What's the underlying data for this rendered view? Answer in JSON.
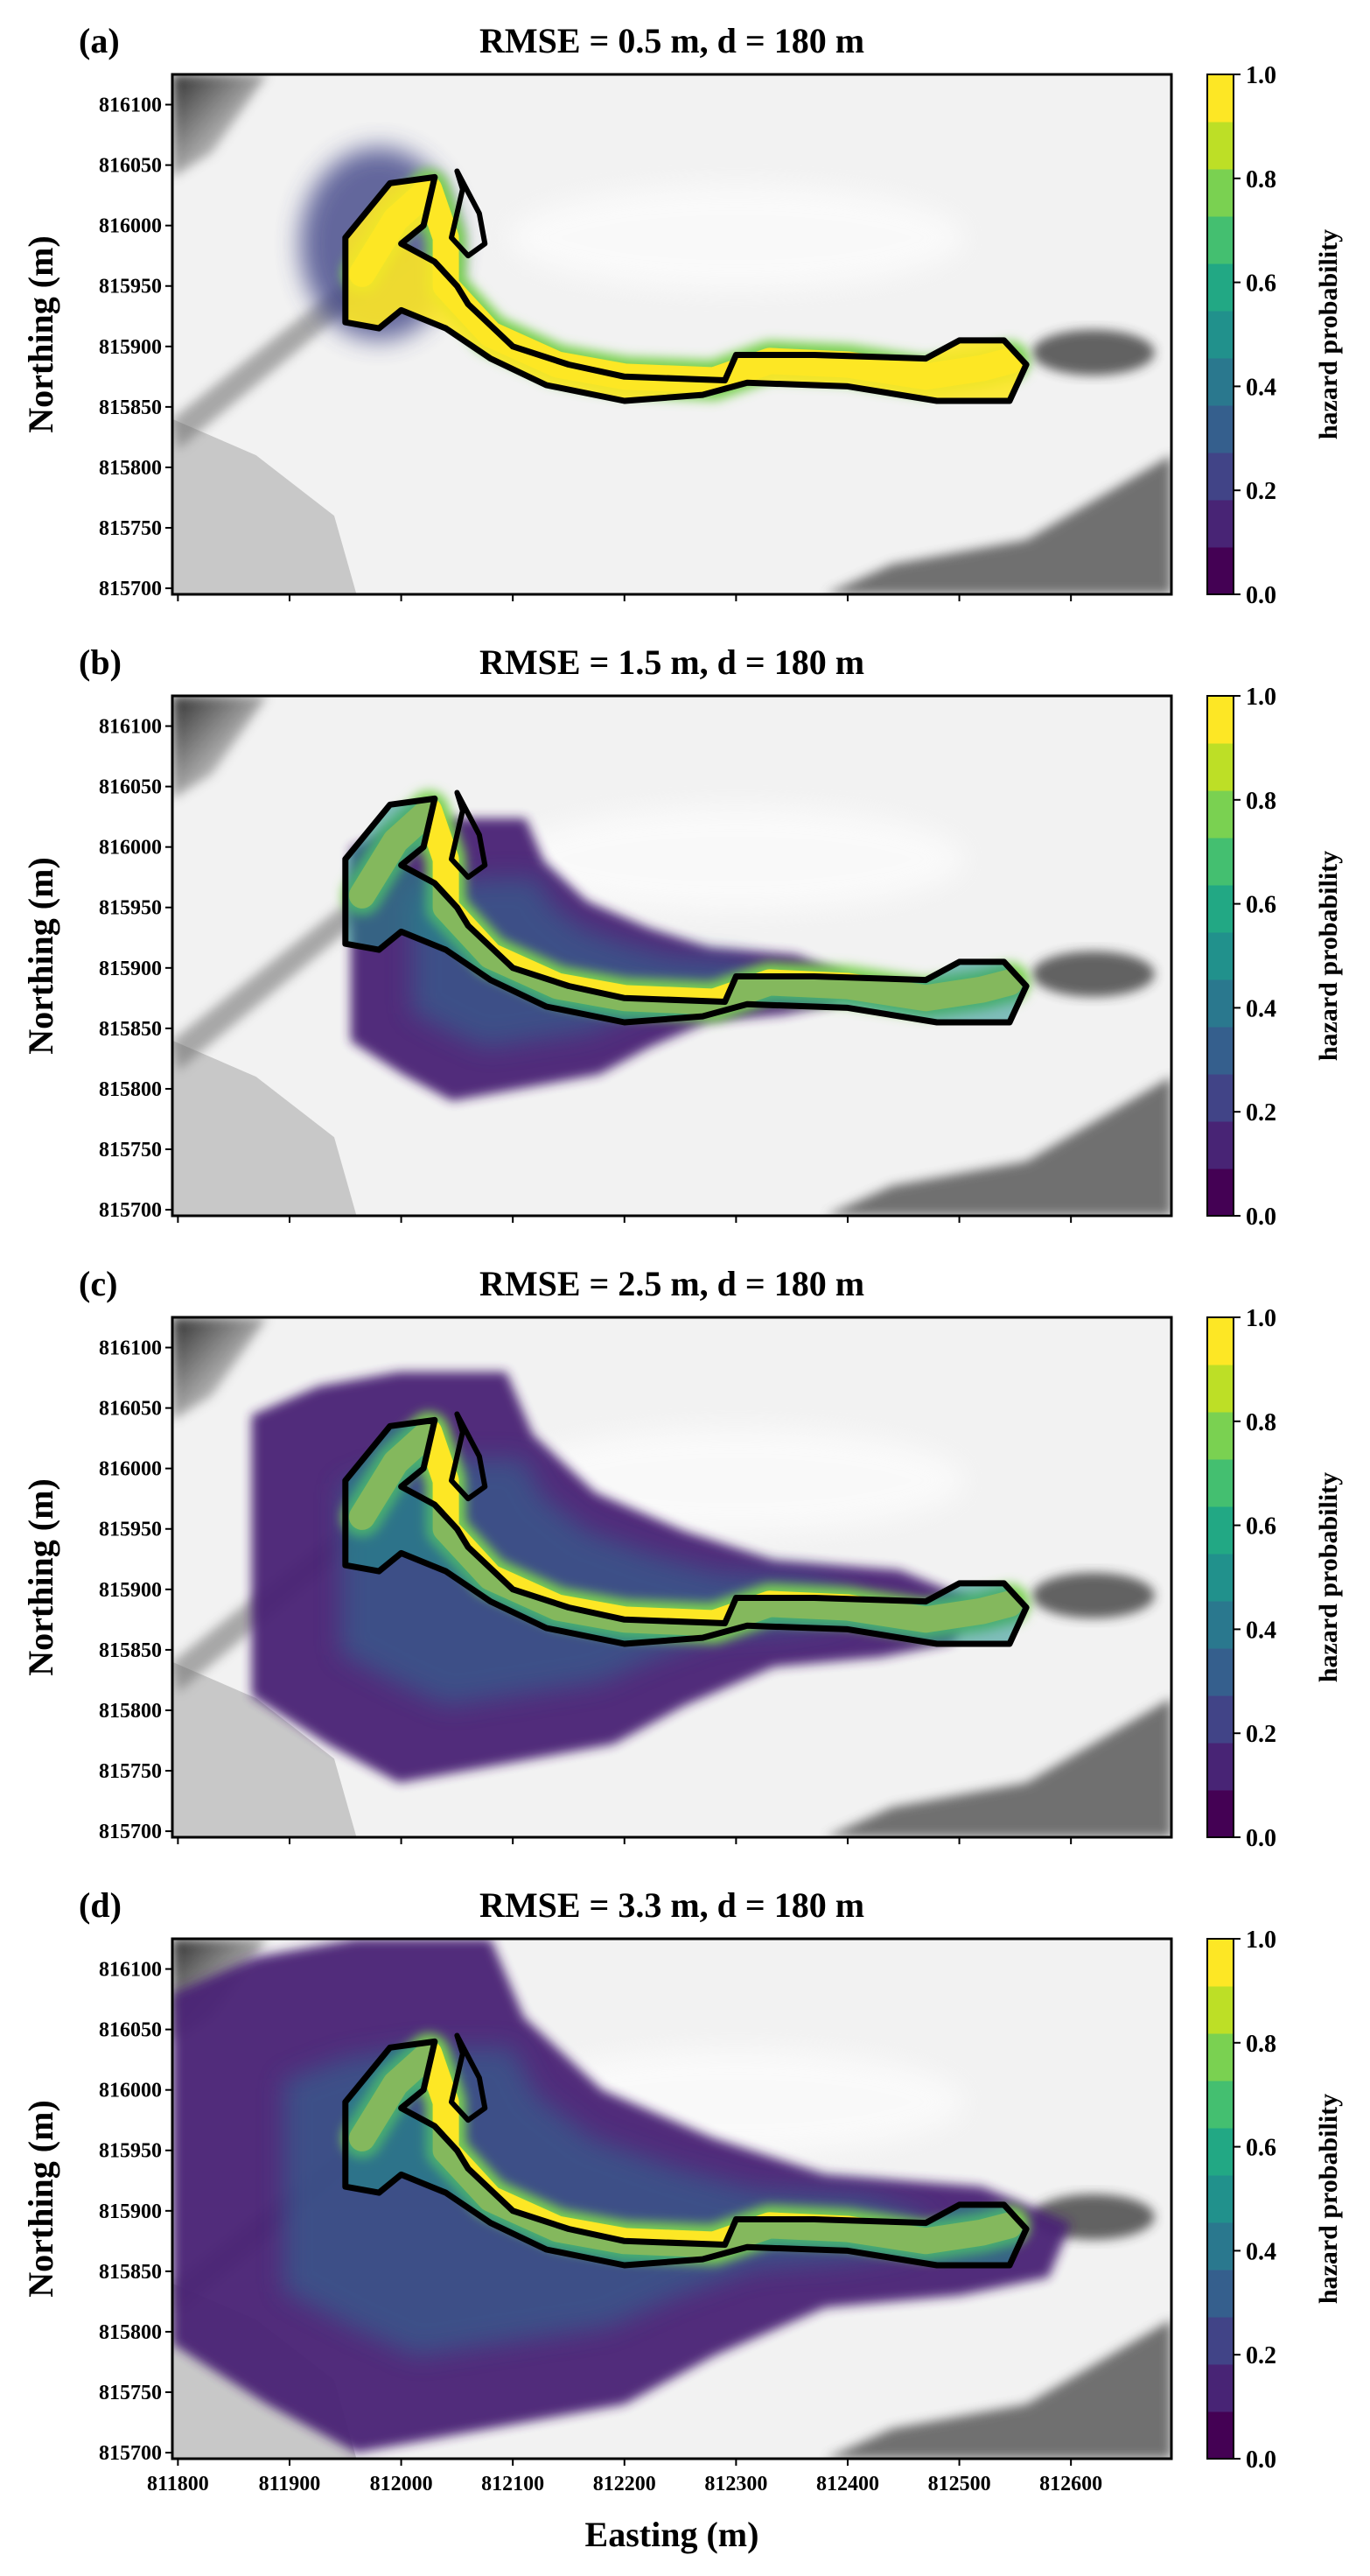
{
  "colormap": {
    "name": "viridis",
    "levels": [
      "#440154",
      "#482475",
      "#414487",
      "#355f8d",
      "#2a788e",
      "#21918c",
      "#22a884",
      "#44bf70",
      "#7ad151",
      "#bddf26",
      "#fde725"
    ]
  },
  "colors": {
    "outline": "#000000",
    "hillshade_light": "#f2f2f2",
    "hillshade_dark": "#555555",
    "nodata_grey": "#c8c8c8"
  },
  "chart_data": [
    {
      "panel": "(a)",
      "type": "heatmap",
      "title": "RMSE = 0.5 m, d = 180 m",
      "ylabel": "Northing (m)",
      "xlabel": "",
      "colorbar_label": "hazard probability",
      "rmse": 0.5,
      "spread": "narrow"
    },
    {
      "panel": "(b)",
      "type": "heatmap",
      "title": "RMSE = 1.5 m, d = 180 m",
      "ylabel": "Northing (m)",
      "xlabel": "",
      "colorbar_label": "hazard probability",
      "rmse": 1.5,
      "spread": "moderate"
    },
    {
      "panel": "(c)",
      "type": "heatmap",
      "title": "RMSE = 2.5 m, d = 180 m",
      "ylabel": "Northing (m)",
      "xlabel": "",
      "colorbar_label": "hazard probability",
      "rmse": 2.5,
      "spread": "wide"
    },
    {
      "panel": "(d)",
      "type": "heatmap",
      "title": "RMSE = 3.3 m, d = 180 m",
      "ylabel": "Northing (m)",
      "xlabel": "Easting (m)",
      "colorbar_label": "hazard probability",
      "rmse": 3.3,
      "spread": "widest"
    }
  ],
  "axes": {
    "x_ticks": [
      "811800",
      "811900",
      "812000",
      "812100",
      "812200",
      "812300",
      "812400",
      "812500",
      "812600"
    ],
    "x_tick_values": [
      811800,
      811900,
      812000,
      812100,
      812200,
      812300,
      812400,
      812500,
      812600
    ],
    "y_ticks": [
      "816100",
      "816050",
      "816000",
      "815950",
      "815900",
      "815850",
      "815800",
      "815750",
      "815700"
    ],
    "y_tick_values": [
      816100,
      816050,
      816000,
      815950,
      815900,
      815850,
      815800,
      815750,
      815700
    ],
    "xlim": [
      811795,
      812690
    ],
    "ylim": [
      815695,
      816125
    ],
    "colorbar_ticks": [
      "0.0",
      "0.2",
      "0.4",
      "0.6",
      "0.8",
      "1.0"
    ],
    "colorbar_values": [
      0.0,
      0.2,
      0.4,
      0.6,
      0.8,
      1.0
    ]
  },
  "flow_path": {
    "centerline": [
      [
        811965,
        815960
      ],
      [
        811995,
        816005
      ],
      [
        812025,
        816030
      ],
      [
        812040,
        815990
      ],
      [
        812040,
        815950
      ],
      [
        812080,
        815910
      ],
      [
        812140,
        815885
      ],
      [
        812200,
        815875
      ],
      [
        812280,
        815872
      ],
      [
        812330,
        815888
      ],
      [
        812400,
        815885
      ],
      [
        812470,
        815875
      ],
      [
        812520,
        815882
      ],
      [
        812545,
        815888
      ]
    ],
    "outline": [
      [
        811950,
        815920
      ],
      [
        811950,
        815990
      ],
      [
        811990,
        816035
      ],
      [
        812030,
        816040
      ],
      [
        812020,
        816000
      ],
      [
        812000,
        815985
      ],
      [
        812030,
        815970
      ],
      [
        812050,
        815950
      ],
      [
        812060,
        815935
      ],
      [
        812100,
        815900
      ],
      [
        812150,
        815885
      ],
      [
        812200,
        815875
      ],
      [
        812290,
        815872
      ],
      [
        812300,
        815893
      ],
      [
        812370,
        815893
      ],
      [
        812470,
        815890
      ],
      [
        812500,
        815905
      ],
      [
        812540,
        815905
      ],
      [
        812560,
        815885
      ],
      [
        812545,
        815855
      ],
      [
        812480,
        815855
      ],
      [
        812400,
        815867
      ],
      [
        812310,
        815870
      ],
      [
        812270,
        815860
      ],
      [
        812200,
        815855
      ],
      [
        812130,
        815868
      ],
      [
        812080,
        815890
      ],
      [
        812040,
        815915
      ],
      [
        812000,
        815930
      ],
      [
        811980,
        815915
      ]
    ],
    "branch": [
      [
        812050,
        816045
      ],
      [
        812070,
        816010
      ],
      [
        812075,
        815985
      ],
      [
        812060,
        815975
      ],
      [
        812045,
        815990
      ],
      [
        812055,
        816030
      ]
    ]
  }
}
